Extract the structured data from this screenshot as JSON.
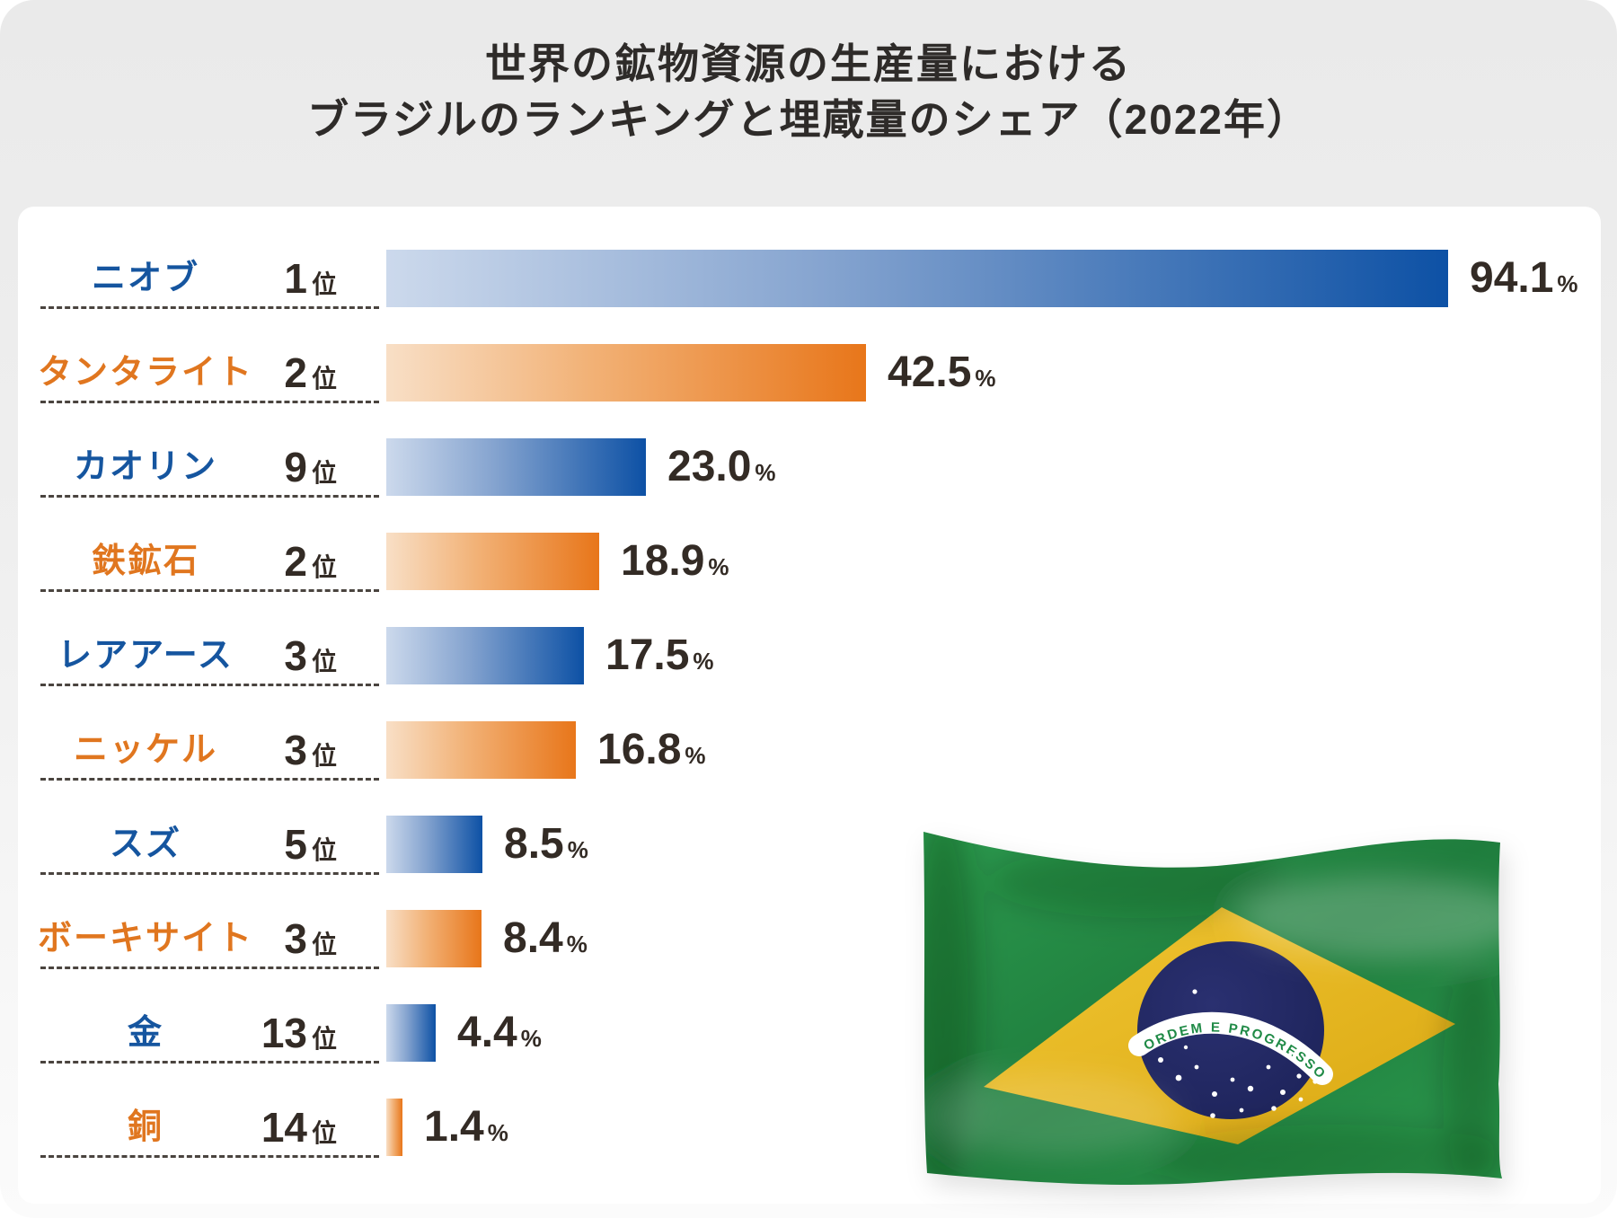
{
  "title": {
    "line1": "世界の鉱物資源の生産量における",
    "line2": "ブラジルのランキングと埋蔵量のシェア（2022年）"
  },
  "colors": {
    "title_text": "#2e2b29",
    "value_text": "#332b25",
    "divider": "#4a443f",
    "blue_label": "#15559f",
    "orange_label": "#e0761f",
    "blue_bar_start": "#ccd9ec",
    "blue_bar_mid": "#84a3cf",
    "blue_bar_end": "#0d51a5",
    "orange_bar_start": "#f8dfc6",
    "orange_bar_mid": "#f2b277",
    "orange_bar_end": "#e8761a"
  },
  "chart_data": {
    "type": "bar",
    "orientation": "horizontal",
    "unit": "%",
    "rank_suffix": "位",
    "value_suffix": "%",
    "xlim": [
      0,
      100
    ],
    "grid": false,
    "legend": "none",
    "items": [
      {
        "label": "ニオブ",
        "rank": "1",
        "value": 94.1,
        "display": "94.1",
        "color": "blue"
      },
      {
        "label": "タンタライト",
        "rank": "2",
        "value": 42.5,
        "display": "42.5",
        "color": "orange"
      },
      {
        "label": "カオリン",
        "rank": "9",
        "value": 23.0,
        "display": "23.0",
        "color": "blue"
      },
      {
        "label": "鉄鉱石",
        "rank": "2",
        "value": 18.9,
        "display": "18.9",
        "color": "orange"
      },
      {
        "label": "レアアース",
        "rank": "3",
        "value": 17.5,
        "display": "17.5",
        "color": "blue"
      },
      {
        "label": "ニッケル",
        "rank": "3",
        "value": 16.8,
        "display": "16.8",
        "color": "orange"
      },
      {
        "label": "スズ",
        "rank": "5",
        "value": 8.5,
        "display": "8.5",
        "color": "blue"
      },
      {
        "label": "ボーキサイト",
        "rank": "3",
        "value": 8.4,
        "display": "8.4",
        "color": "orange"
      },
      {
        "label": "金",
        "rank": "13",
        "value": 4.4,
        "display": "4.4",
        "color": "blue"
      },
      {
        "label": "銅",
        "rank": "14",
        "value": 1.4,
        "display": "1.4",
        "color": "orange"
      }
    ]
  },
  "flag": {
    "alt": "ブラジル国旗",
    "motto": "ORDEM E PROGRESSO",
    "colors": {
      "green": "#2b9a4e",
      "green_dark": "#1f7d3d",
      "yellow": "#f0c532",
      "yellow_dark": "#dba913",
      "navy": "#2a3070",
      "navy_dark": "#1b2156",
      "white": "#ffffff",
      "motto_green": "#1f8a46"
    }
  }
}
